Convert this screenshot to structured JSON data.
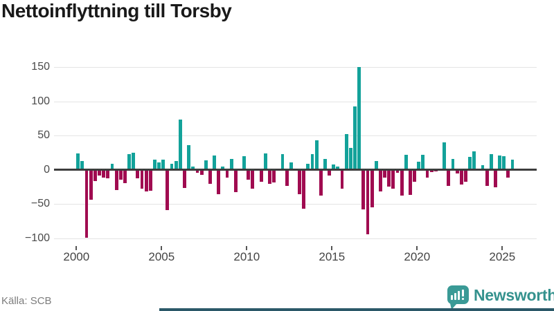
{
  "title": "Nettoinflyttning till Torsby",
  "source": "Källa: SCB",
  "branding": {
    "name": "Newsworthy"
  },
  "colors": {
    "positive_bar": "#13a29a",
    "negative_bar": "#a00b50",
    "zero_line": "#3d3d3d",
    "gridline": "#e4e4e4",
    "brand_teal": "#3a9a96",
    "footer_strip": "#2b5868"
  },
  "chart_data": {
    "type": "bar",
    "title": "Nettoinflyttning till Torsby",
    "xlabel": "",
    "ylabel": "",
    "grid": true,
    "legend": "none",
    "period": "quarterly",
    "start_quarter": "2000 Q1",
    "end_quarter": "2025 Q3",
    "x_tick_labels": [
      "2000",
      "2005",
      "2010",
      "2015",
      "2020",
      "2025"
    ],
    "x_tick_years": [
      2000,
      2005,
      2010,
      2015,
      2020,
      2025
    ],
    "y_tick_labels": [
      "150",
      "100",
      "50",
      "0",
      "−50",
      "−100"
    ],
    "y_ticks": [
      150,
      100,
      50,
      0,
      -50,
      -100
    ],
    "ylim": [
      -110,
      162
    ],
    "values": [
      24,
      13,
      -99,
      -44,
      -16,
      -8,
      -11,
      -12,
      9,
      -29,
      -14,
      -19,
      23,
      25,
      -12,
      -27,
      -31,
      -30,
      15,
      11,
      15,
      -59,
      9,
      13,
      73,
      -26,
      36,
      5,
      -4,
      -7,
      14,
      -20,
      21,
      -35,
      5,
      -11,
      16,
      -32,
      0,
      20,
      -14,
      -27,
      0,
      -17,
      24,
      -20,
      -18,
      0,
      23,
      -23,
      11,
      2,
      -35,
      -57,
      9,
      23,
      43,
      -38,
      16,
      -8,
      8,
      5,
      -27,
      52,
      32,
      93,
      150,
      -58,
      -94,
      -55,
      13,
      -31,
      -11,
      -24,
      -27,
      -4,
      -38,
      22,
      -37,
      -17,
      12,
      22,
      -11,
      -3,
      -2,
      0,
      40,
      -23,
      16,
      -5,
      -21,
      -17,
      19,
      27,
      2,
      7,
      -23,
      23,
      -25,
      21,
      20,
      -11,
      15
    ]
  }
}
